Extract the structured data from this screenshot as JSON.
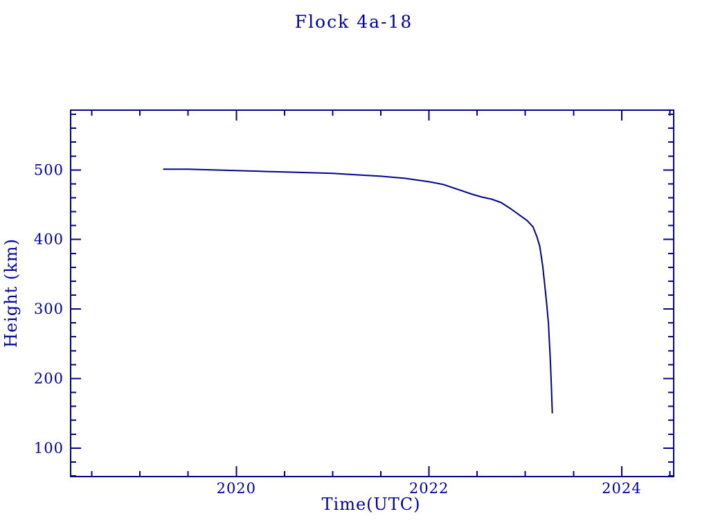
{
  "page": {
    "background": "#FFFFFF"
  },
  "chart_data": {
    "type": "line",
    "title": "Flock 4a-18",
    "xlabel": "Time(UTC)",
    "ylabel": "Height (km)",
    "xlim": [
      2018.28,
      2024.54
    ],
    "ylim": [
      59,
      586
    ],
    "x_major_ticks": [
      2020,
      2022,
      2024
    ],
    "x_minor_step": 0.5,
    "y_major_ticks": [
      100,
      200,
      300,
      400,
      500
    ],
    "y_minor_step": 20,
    "grid": false,
    "legend": false,
    "colors": {
      "line": "#00008B",
      "text": "#0000A0",
      "background": "#FFFFFF"
    },
    "series": [
      {
        "name": "Flock 4a-18",
        "x": [
          2019.24,
          2019.5,
          2019.75,
          2020.0,
          2020.25,
          2020.5,
          2020.75,
          2021.0,
          2021.25,
          2021.5,
          2021.75,
          2022.0,
          2022.15,
          2022.3,
          2022.45,
          2022.55,
          2022.65,
          2022.75,
          2022.85,
          2022.95,
          2023.02,
          2023.08,
          2023.12,
          2023.15,
          2023.18,
          2023.2,
          2023.22,
          2023.24,
          2023.25,
          2023.26,
          2023.27,
          2023.28
        ],
        "y": [
          501,
          501,
          500,
          499,
          498,
          497,
          496,
          495,
          493,
          491,
          488,
          483,
          479,
          472,
          465,
          461,
          458,
          453,
          444,
          434,
          427,
          418,
          404,
          390,
          362,
          336,
          310,
          280,
          252,
          225,
          190,
          150
        ]
      }
    ]
  }
}
